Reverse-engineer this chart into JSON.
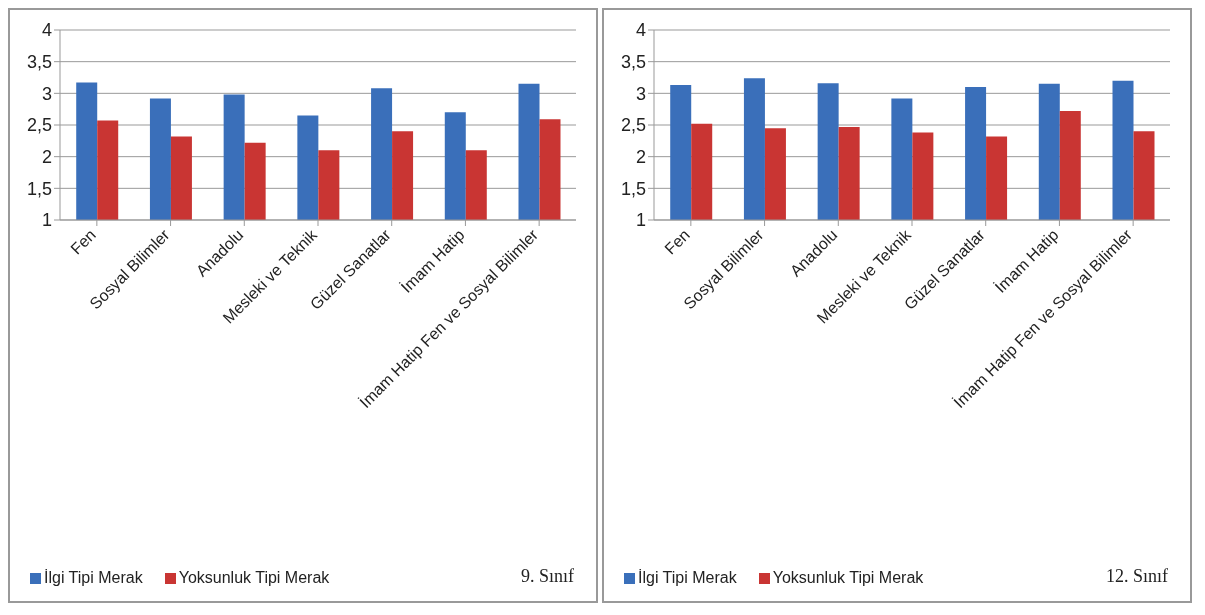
{
  "chart_data": [
    {
      "type": "bar",
      "categories": [
        "Fen",
        "Sosyal Bilimler",
        "Anadolu",
        "Mesleki ve Teknik",
        "Güzel Sanatlar",
        "İmam Hatip",
        "İmam Hatip Fen ve Sosyal Bilimler"
      ],
      "series": [
        {
          "name": "İlgi Tipi Merak",
          "color": "#3a6fba",
          "values": [
            3.17,
            2.92,
            2.98,
            2.65,
            3.08,
            2.7,
            3.15
          ]
        },
        {
          "name": "Yoksunluk Tipi Merak",
          "color": "#c93533",
          "values": [
            2.57,
            2.32,
            2.22,
            2.1,
            2.4,
            2.1,
            2.59
          ]
        }
      ],
      "ylim": [
        1,
        4
      ],
      "yticks": [
        {
          "value": 1,
          "label": "1"
        },
        {
          "value": 1.5,
          "label": "1,5"
        },
        {
          "value": 2,
          "label": "2"
        },
        {
          "value": 2.5,
          "label": "2,5"
        },
        {
          "value": 3,
          "label": "3"
        },
        {
          "value": 3.5,
          "label": "3,5"
        },
        {
          "value": 4,
          "label": "4"
        }
      ],
      "grid": "y",
      "legend": "bottom",
      "annotations": [
        "9. Sınıf"
      ]
    },
    {
      "type": "bar",
      "categories": [
        "Fen",
        "Sosyal Bilimler",
        "Anadolu",
        "Mesleki ve Teknik",
        "Güzel Sanatlar",
        "İmam Hatip",
        "İmam Hatip Fen ve Sosyal Bilimler"
      ],
      "series": [
        {
          "name": "İlgi Tipi Merak",
          "color": "#3a6fba",
          "values": [
            3.13,
            3.24,
            3.16,
            2.92,
            3.1,
            3.15,
            3.2
          ]
        },
        {
          "name": "Yoksunluk Tipi Merak",
          "color": "#c93533",
          "values": [
            2.52,
            2.45,
            2.47,
            2.38,
            2.32,
            2.72,
            2.4
          ]
        }
      ],
      "ylim": [
        1,
        4
      ],
      "yticks": [
        {
          "value": 1,
          "label": "1"
        },
        {
          "value": 1.5,
          "label": "1,5"
        },
        {
          "value": 2,
          "label": "2"
        },
        {
          "value": 2.5,
          "label": "2,5"
        },
        {
          "value": 3,
          "label": "3"
        },
        {
          "value": 3.5,
          "label": "3,5"
        },
        {
          "value": 4,
          "label": "4"
        }
      ],
      "grid": "y",
      "legend": "bottom",
      "annotations": [
        "12. Sınıf"
      ]
    }
  ]
}
